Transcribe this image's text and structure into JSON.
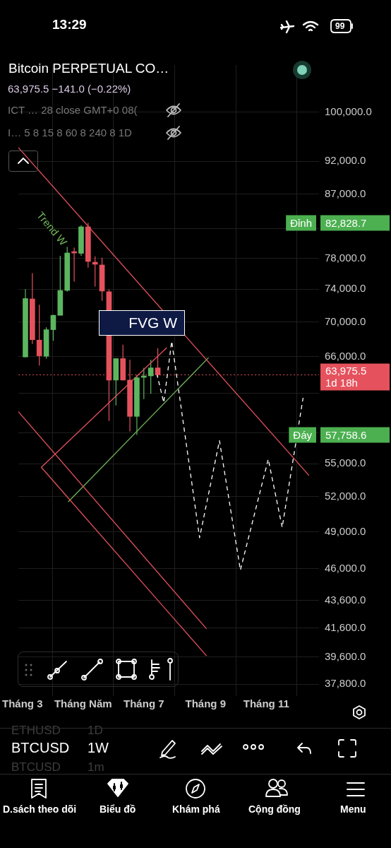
{
  "chart_data": {
    "type": "candlestick",
    "title": "Bitcoin PERPETUAL CO…",
    "subtitle": "63,975.5 −141.0 (−0.22%)",
    "x": [
      "--03-04",
      "--03-11",
      "--03-18",
      "--03-25",
      "--04-01",
      "--04-08",
      "--04-15",
      "--04-22",
      "--04-29",
      "--05-06",
      "--05-13",
      "--05-20",
      "--05-27",
      "--06-03",
      "--06-10",
      "--06-17",
      "--06-24",
      "--07-01",
      "--07-08",
      "--07-15"
    ],
    "ohlc": [
      [
        65950,
        74000,
        65900,
        72840
      ],
      [
        72790,
        76060,
        67420,
        67920
      ],
      [
        67870,
        72070,
        65000,
        66080
      ],
      [
        66030,
        69360,
        65770,
        69080
      ],
      [
        69080,
        70870,
        67790,
        70790
      ],
      [
        70790,
        78340,
        70790,
        73850
      ],
      [
        73850,
        79530,
        73700,
        78710
      ],
      [
        78760,
        79450,
        74970,
        78700
      ],
      [
        78660,
        82500,
        78340,
        82290
      ],
      [
        82290,
        82828.7,
        76760,
        77580
      ],
      [
        77480,
        78250,
        74350,
        77210
      ],
      [
        77120,
        78090,
        72560,
        73770
      ],
      [
        73680,
        73970,
        59150,
        63410
      ],
      [
        63410,
        65770,
        60730,
        65770
      ],
      [
        65770,
        67340,
        63350,
        63410
      ],
      [
        63410,
        65640,
        58110,
        59610
      ],
      [
        59610,
        63980,
        57758.6,
        63660
      ],
      [
        63700,
        64740,
        61400,
        63800
      ],
      [
        63860,
        65640,
        61940,
        64740
      ],
      [
        64740,
        66940,
        63740,
        63975.5
      ]
    ],
    "colors": [
      "#5cb660",
      "#e5525d",
      "#e5525d",
      "#5cb660",
      "#5cb660",
      "#5cb660",
      "#5cb660",
      "#e5525d",
      "#5cb660",
      "#e5525d",
      "#e5525d",
      "#e5525d",
      "#e5525d",
      "#5cb660",
      "#e5525d",
      "#e5525d",
      "#5cb660",
      "#5cb660",
      "#5cb660",
      "#e5525d"
    ],
    "series": [
      {
        "type": "line",
        "x": [
          "--02-26",
          "--12-14"
        ],
        "values": [
          94160,
          53910
        ],
        "color": "#e5525d",
        "line_style": "solid"
      },
      {
        "type": "line",
        "x": [
          "--03-20",
          "--07-24"
        ],
        "values": [
          54670,
          67000
        ],
        "color": "#e5525d",
        "line_style": "solid"
      },
      {
        "type": "line",
        "x": [
          "--02-26",
          "--09-02"
        ],
        "values": [
          60090,
          41540
        ],
        "color": "#e5525d",
        "line_style": "solid"
      },
      {
        "type": "line",
        "x": [
          "--03-20",
          "--09-02"
        ],
        "values": [
          54670,
          39670
        ],
        "color": "#e5525d",
        "line_style": "solid"
      },
      {
        "type": "line",
        "x": [
          "--04-16",
          "--09-04"
        ],
        "values": [
          51540,
          65870
        ],
        "color": "#6fb65a",
        "line_style": "solid"
      },
      {
        "type": "line",
        "x": [
          "--07-14",
          "--07-21",
          "--07-29",
          "--08-26",
          "--09-15",
          "--10-06",
          "--11-03",
          "--11-17",
          "--12-08"
        ],
        "values": [
          64110,
          61030,
          67740,
          48500,
          57200,
          45900,
          55430,
          49360,
          61520
        ],
        "color": "#ffffff",
        "line_style": "dashed"
      }
    ],
    "xlim": [
      "--02-26",
      "--12-24"
    ],
    "xticks": [
      {
        "value": "--03-01",
        "label": "Tháng 3"
      },
      {
        "value": "--05-01",
        "label": "Tháng Năm"
      },
      {
        "value": "--07-01",
        "label": "Tháng 7"
      },
      {
        "value": "--09-01",
        "label": "Tháng 9"
      },
      {
        "value": "--11-01",
        "label": "Tháng 11"
      }
    ],
    "ylim": [
      37050,
      108350
    ],
    "yticks": [
      {
        "value": 100000,
        "label": "100,000.0"
      },
      {
        "value": 92000,
        "label": "92,000.0"
      },
      {
        "value": 87000,
        "label": "87,000.0"
      },
      {
        "value": 82000,
        "label": null
      },
      {
        "value": 78000,
        "label": "78,000.0"
      },
      {
        "value": 74000,
        "label": "74,000.0"
      },
      {
        "value": 70000,
        "label": "70,000.0"
      },
      {
        "value": 66000,
        "label": "66,000.0"
      },
      {
        "value": 62000,
        "label": null
      },
      {
        "value": 58000,
        "label": null
      },
      {
        "value": 55000,
        "label": "55,000.0"
      },
      {
        "value": 52000,
        "label": "52,000.0"
      },
      {
        "value": 49000,
        "label": "49,000.0"
      },
      {
        "value": 46000,
        "label": "46,000.0"
      },
      {
        "value": 43600,
        "label": "43,600.0"
      },
      {
        "value": 41600,
        "label": "41,600.0"
      },
      {
        "value": 39600,
        "label": "39,600.0"
      },
      {
        "value": 37800,
        "label": "37,800.0"
      }
    ],
    "log": true,
    "grid": true,
    "ref_lines": [
      {
        "axis": "y",
        "value": 63975.5,
        "label": "63,975.5",
        "color": "#e5525d",
        "line_style": "dotted"
      }
    ],
    "annotations": [
      {
        "text": "Đỉnh",
        "y": 82828.7
      },
      "82,828.7",
      {
        "text": "Đáy",
        "y": 57758.6
      },
      "57,758.6",
      "1d 18h",
      "Trend W",
      "FVG W",
      "13:29",
      "99",
      "ICT … 28 close GMT+0 08(",
      "I…  5 8 15 8 60 8 240 8 1D",
      "ETHUSD",
      "1D",
      "BTCUSD",
      "1W",
      "BTCUSD",
      "1m",
      "D.sách theo dõi",
      "Biểu đồ",
      "Khám phá",
      "Cộng đồng",
      "Menu"
    ]
  }
}
